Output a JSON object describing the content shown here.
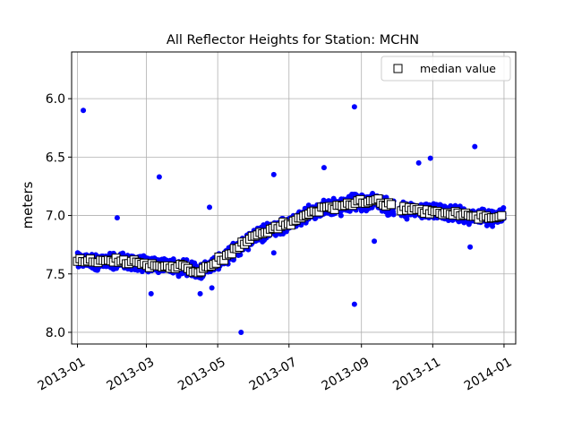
{
  "chart_data": {
    "type": "scatter",
    "title": "All Reflector Heights for Station: MCHN",
    "xlabel": "",
    "ylabel": "meters",
    "x_type": "date",
    "xlim": [
      "2012-12-27",
      "2014-01-11"
    ],
    "ylim": [
      8.1,
      5.6
    ],
    "y_inverted": true,
    "x_ticks": [
      "2013-01",
      "2013-03",
      "2013-05",
      "2013-07",
      "2013-09",
      "2013-11",
      "2014-01"
    ],
    "y_ticks": [
      "6.0",
      "6.5",
      "7.0",
      "7.5",
      "8.0"
    ],
    "grid": true,
    "legend": {
      "placement": "top-right",
      "entries": [
        "median value"
      ]
    },
    "colors": {
      "all_points": "#0000ff",
      "median_face": "#ffffff",
      "median_edge": "#000000"
    },
    "series": [
      {
        "marker": "circle",
        "color": "#0000ff",
        "points": [
          [
            "2013-01-06",
            6.1
          ],
          [
            "2013-02-04",
            7.02
          ],
          [
            "2013-03-12",
            6.67
          ],
          [
            "2013-04-24",
            6.93
          ],
          [
            "2013-04-26",
            7.62
          ],
          [
            "2013-05-21",
            8.0
          ],
          [
            "2013-06-18",
            6.65
          ],
          [
            "2013-06-18",
            7.32
          ],
          [
            "2013-07-31",
            6.59
          ],
          [
            "2013-08-26",
            7.76
          ],
          [
            "2013-08-26",
            6.07
          ],
          [
            "2013-09-12",
            7.22
          ],
          [
            "2013-10-30",
            6.51
          ],
          [
            "2013-12-07",
            6.41
          ],
          [
            "2013-12-03",
            7.27
          ],
          [
            "2013-04-16",
            7.67
          ],
          [
            "2013-03-05",
            7.67
          ],
          [
            "2013-10-20",
            6.55
          ]
        ],
        "trend": [
          [
            "2013-01-01",
            7.38
          ],
          [
            "2013-01-15",
            7.4
          ],
          [
            "2013-02-01",
            7.38
          ],
          [
            "2013-02-15",
            7.4
          ],
          [
            "2013-03-01",
            7.42
          ],
          [
            "2013-03-15",
            7.43
          ],
          [
            "2013-04-01",
            7.45
          ],
          [
            "2013-04-15",
            7.48
          ],
          [
            "2013-05-01",
            7.4
          ],
          [
            "2013-05-15",
            7.3
          ],
          [
            "2013-06-01",
            7.18
          ],
          [
            "2013-06-15",
            7.12
          ],
          [
            "2013-07-01",
            7.07
          ],
          [
            "2013-07-15",
            7.0
          ],
          [
            "2013-08-01",
            6.93
          ],
          [
            "2013-08-15",
            6.92
          ],
          [
            "2013-09-01",
            6.88
          ],
          [
            "2013-09-15",
            6.88
          ],
          [
            "2013-10-01",
            6.95
          ],
          [
            "2013-10-15",
            6.95
          ],
          [
            "2013-11-01",
            6.97
          ],
          [
            "2013-11-15",
            6.98
          ],
          [
            "2013-12-01",
            7.0
          ],
          [
            "2013-12-15",
            7.02
          ],
          [
            "2013-12-31",
            7.0
          ]
        ]
      },
      {
        "name": "median value",
        "marker": "square",
        "face": "#ffffff",
        "edge": "#000000"
      }
    ]
  }
}
